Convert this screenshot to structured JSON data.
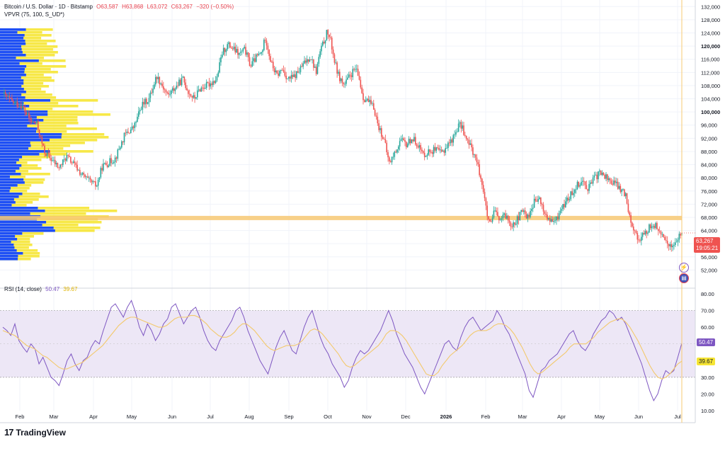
{
  "header": {
    "symbol": "Bitcoin / U.S. Dollar · 1D · Bitstamp",
    "open": "O63,587",
    "high": "H63,868",
    "low": "L63,072",
    "close": "C63,267",
    "change": "−320 (−0.50%)",
    "vpvr": "VPVR (75, 100, S_UD*)"
  },
  "rsi_header": {
    "label": "RSI (14, close)",
    "rsi_value": "50.47",
    "ma_value": "39.67"
  },
  "price_badge": {
    "price": "63,267",
    "countdown": "19:05:21"
  },
  "brand": {
    "name": "TradingView"
  },
  "colors": {
    "up": "#26a69a",
    "down": "#ef5350",
    "vp_up": "#1e4ff5",
    "vp_down": "#f6e534",
    "poc": "#f7c873",
    "rsi_line": "#7e57c2",
    "rsi_ma": "#f3c96c",
    "rsi_band": "#ede7f6"
  },
  "chart_data": [
    {
      "type": "candlestick",
      "title": "Bitcoin / U.S. Dollar · 1D · Bitstamp",
      "ylim": [
        48000,
        134000
      ],
      "y_ticks": [
        52000,
        56000,
        60000,
        64000,
        68000,
        72000,
        76000,
        80000,
        84000,
        88000,
        92000,
        96000,
        100000,
        104000,
        108000,
        112000,
        116000,
        120000,
        124000,
        128000,
        132000
      ],
      "y_tick_labels": [
        "52,000",
        "56,000",
        "60,000",
        "64,000",
        "68,000",
        "72,000",
        "76,000",
        "80,000",
        "84,000",
        "88,000",
        "92,000",
        "96,000",
        "100,000",
        "104,000",
        "108,000",
        "112,000",
        "116,000",
        "120,000",
        "124,000",
        "128,000",
        "132,000"
      ],
      "bold_ticks": [
        100000,
        120000
      ],
      "x_labels": [
        "Feb",
        "Mar",
        "Apr",
        "May",
        "Jun",
        "Jul",
        "Aug",
        "Sep",
        "Oct",
        "Nov",
        "Dec",
        "2026",
        "Feb",
        "Mar",
        "Apr",
        "May",
        "Jun",
        "Jul"
      ],
      "close_path": [
        [
          0,
          105500
        ],
        [
          0.5,
          103000
        ],
        [
          1.0,
          102000
        ],
        [
          1.5,
          97000
        ],
        [
          1.8,
          96500
        ],
        [
          2.2,
          88000
        ],
        [
          2.6,
          85500
        ],
        [
          3.0,
          83000
        ],
        [
          3.4,
          86500
        ],
        [
          3.8,
          84000
        ],
        [
          4.2,
          81000
        ],
        [
          4.6,
          79000
        ],
        [
          5.0,
          77500
        ],
        [
          5.3,
          83500
        ],
        [
          5.6,
          84500
        ],
        [
          6.0,
          86000
        ],
        [
          6.5,
          93000
        ],
        [
          7.0,
          95500
        ],
        [
          7.4,
          102000
        ],
        [
          7.8,
          104000
        ],
        [
          8.2,
          111000
        ],
        [
          8.5,
          108000
        ],
        [
          8.8,
          105000
        ],
        [
          9.2,
          107500
        ],
        [
          9.6,
          110000
        ],
        [
          9.9,
          106000
        ],
        [
          10.2,
          104000
        ],
        [
          10.5,
          107000
        ],
        [
          11.0,
          108500
        ],
        [
          11.4,
          110000
        ],
        [
          11.7,
          118000
        ],
        [
          12.0,
          120500
        ],
        [
          12.3,
          119000
        ],
        [
          12.6,
          117500
        ],
        [
          12.9,
          119000
        ],
        [
          13.2,
          114000
        ],
        [
          13.5,
          116500
        ],
        [
          13.8,
          118000
        ],
        [
          14.0,
          122800
        ],
        [
          14.3,
          115000
        ],
        [
          14.6,
          111000
        ],
        [
          14.9,
          113000
        ],
        [
          15.2,
          110000
        ],
        [
          15.5,
          110500
        ],
        [
          15.8,
          112500
        ],
        [
          16.1,
          115000
        ],
        [
          16.4,
          117000
        ],
        [
          16.7,
          112000
        ],
        [
          16.9,
          118000
        ],
        [
          17.1,
          121000
        ],
        [
          17.3,
          124500
        ],
        [
          17.5,
          121000
        ],
        [
          17.7,
          115000
        ],
        [
          17.9,
          111000
        ],
        [
          18.2,
          108000
        ],
        [
          18.5,
          111000
        ],
        [
          18.8,
          113000
        ],
        [
          19.0,
          110000
        ],
        [
          19.2,
          104500
        ],
        [
          19.5,
          103000
        ],
        [
          19.8,
          101000
        ],
        [
          20.0,
          96000
        ],
        [
          20.3,
          92000
        ],
        [
          20.6,
          84500
        ],
        [
          20.9,
          87500
        ],
        [
          21.2,
          91500
        ],
        [
          21.5,
          90000
        ],
        [
          21.8,
          92000
        ],
        [
          22.1,
          90500
        ],
        [
          22.4,
          87000
        ],
        [
          22.7,
          88000
        ],
        [
          23.0,
          88500
        ],
        [
          23.4,
          87500
        ],
        [
          23.7,
          90000
        ],
        [
          24.0,
          92000
        ],
        [
          24.3,
          96000
        ],
        [
          24.5,
          95500
        ],
        [
          24.7,
          91500
        ],
        [
          25.0,
          89000
        ],
        [
          25.2,
          86000
        ],
        [
          25.4,
          82000
        ],
        [
          25.6,
          77000
        ],
        [
          25.8,
          69000
        ],
        [
          26.0,
          65000
        ],
        [
          26.2,
          70000
        ],
        [
          26.5,
          67000
        ],
        [
          26.8,
          68500
        ],
        [
          27.1,
          66000
        ],
        [
          27.4,
          67000
        ],
        [
          27.7,
          70000
        ],
        [
          28.0,
          68000
        ],
        [
          28.3,
          72500
        ],
        [
          28.6,
          73500
        ],
        [
          28.9,
          69000
        ],
        [
          29.2,
          66500
        ],
        [
          29.5,
          67000
        ],
        [
          29.7,
          70000
        ],
        [
          30.0,
          72500
        ],
        [
          30.3,
          75000
        ],
        [
          30.6,
          78000
        ],
        [
          30.9,
          79000
        ],
        [
          31.2,
          77000
        ],
        [
          31.5,
          79500
        ],
        [
          31.8,
          81500
        ],
        [
          32.1,
          80500
        ],
        [
          32.4,
          79000
        ],
        [
          32.7,
          78000
        ],
        [
          33.0,
          76000
        ],
        [
          33.2,
          75000
        ],
        [
          33.4,
          69000
        ],
        [
          33.6,
          65000
        ],
        [
          33.8,
          62000
        ],
        [
          34.0,
          61500
        ],
        [
          34.3,
          63500
        ],
        [
          34.6,
          66000
        ],
        [
          34.9,
          65000
        ],
        [
          35.1,
          62000
        ],
        [
          35.4,
          61000
        ],
        [
          35.6,
          59000
        ],
        [
          35.9,
          60500
        ],
        [
          36.2,
          63267
        ]
      ],
      "last_close": 63267,
      "poc_level": 67800
    },
    {
      "type": "line",
      "title": "RSI (14, close)",
      "ylim": [
        10,
        80
      ],
      "y_ticks": [
        10,
        20,
        30,
        40,
        50,
        60,
        70,
        80
      ],
      "y_tick_labels": [
        "10.00",
        "20.00",
        "30.00",
        "40.00",
        "50.00",
        "60.00",
        "70.00",
        "80.00"
      ],
      "bands": [
        30,
        70
      ],
      "series": [
        {
          "name": "RSI",
          "values": [
            60,
            58,
            55,
            62,
            52,
            48,
            45,
            50,
            47,
            38,
            42,
            36,
            30,
            28,
            25,
            32,
            40,
            44,
            38,
            34,
            40,
            42,
            48,
            52,
            50,
            58,
            65,
            72,
            74,
            70,
            66,
            72,
            76,
            69,
            60,
            55,
            62,
            58,
            52,
            56,
            62,
            65,
            72,
            74,
            68,
            62,
            66,
            70,
            72,
            66,
            58,
            52,
            48,
            46,
            52,
            56,
            60,
            64,
            70,
            72,
            66,
            58,
            52,
            46,
            40,
            36,
            32,
            40,
            48,
            54,
            58,
            52,
            46,
            44,
            52,
            60,
            66,
            70,
            62,
            54,
            48,
            44,
            38,
            34,
            30,
            24,
            28,
            36,
            42,
            46,
            44,
            46,
            50,
            54,
            58,
            64,
            70,
            64,
            56,
            50,
            44,
            40,
            36,
            30,
            24,
            20,
            26,
            32,
            38,
            44,
            50,
            52,
            48,
            46,
            54,
            60,
            64,
            66,
            62,
            58,
            60,
            62,
            64,
            70,
            66,
            60,
            56,
            50,
            44,
            38,
            32,
            22,
            18,
            26,
            34,
            36,
            40,
            42,
            44,
            48,
            52,
            56,
            58,
            52,
            48,
            46,
            50,
            56,
            60,
            64,
            66,
            70,
            68,
            64,
            66,
            62,
            56,
            50,
            44,
            38,
            30,
            22,
            16,
            20,
            28,
            34,
            32,
            34,
            42,
            50.47
          ]
        },
        {
          "name": "RSI-based MA",
          "values": [
            58,
            57,
            56,
            55,
            53,
            51,
            49,
            48,
            47,
            45,
            43,
            42,
            40,
            38,
            36,
            35,
            35,
            36,
            37,
            38,
            39,
            41,
            43,
            45,
            47,
            49,
            52,
            55,
            58,
            61,
            63,
            65,
            66,
            66,
            65,
            64,
            63,
            62,
            61,
            60,
            60,
            61,
            63,
            65,
            66,
            66,
            66,
            67,
            67,
            66,
            64,
            62,
            59,
            57,
            55,
            54,
            54,
            55,
            57,
            60,
            62,
            62,
            60,
            58,
            55,
            52,
            49,
            47,
            46,
            47,
            48,
            49,
            49,
            49,
            50,
            52,
            55,
            58,
            59,
            58,
            56,
            53,
            50,
            47,
            44,
            40,
            37,
            36,
            37,
            39,
            41,
            43,
            45,
            47,
            49,
            52,
            56,
            58,
            58,
            57,
            55,
            52,
            48,
            44,
            40,
            36,
            32,
            31,
            31,
            33,
            37,
            40,
            43,
            45,
            47,
            49,
            52,
            55,
            57,
            58,
            58,
            58,
            59,
            61,
            62,
            62,
            61,
            59,
            56,
            52,
            48,
            43,
            38,
            34,
            32,
            33,
            35,
            37,
            39,
            41,
            43,
            45,
            48,
            50,
            50,
            50,
            50,
            52,
            54,
            57,
            59,
            61,
            63,
            64,
            65,
            65,
            63,
            60,
            56,
            52,
            47,
            42,
            37,
            33,
            30,
            29,
            30,
            32,
            35,
            38,
            39.67
          ]
        }
      ]
    }
  ]
}
